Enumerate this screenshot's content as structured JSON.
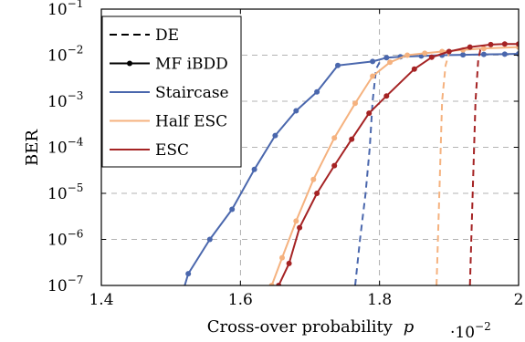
{
  "chart_data": {
    "type": "line",
    "xlabel": "Cross-over probability",
    "xlabel_var": "p",
    "ylabel": "BER",
    "x_multiplier": "·10",
    "x_multiplier_exp": "−2",
    "xlim": [
      1.4,
      2.0
    ],
    "ylim_log10": [
      -7,
      -1
    ],
    "x_ticks": [
      {
        "v": 1.4,
        "label": "1.4"
      },
      {
        "v": 1.6,
        "label": "1.6"
      },
      {
        "v": 1.8,
        "label": "1.8"
      },
      {
        "v": 2.0,
        "label": "2"
      }
    ],
    "y_ticks": [
      {
        "e": -1,
        "base": "10",
        "exp": "−1"
      },
      {
        "e": -2,
        "base": "10",
        "exp": "−2"
      },
      {
        "e": -3,
        "base": "10",
        "exp": "−3"
      },
      {
        "e": -4,
        "base": "10",
        "exp": "−4"
      },
      {
        "e": -5,
        "base": "10",
        "exp": "−5"
      },
      {
        "e": -6,
        "base": "10",
        "exp": "−6"
      },
      {
        "e": -7,
        "base": "10",
        "exp": "−7"
      }
    ],
    "grid": true,
    "legend_position": "top-left",
    "legend": [
      {
        "label": "DE",
        "style": "dashed",
        "color": "#000000"
      },
      {
        "label": "MF iBDD",
        "style": "solid-marker",
        "color": "#000000"
      },
      {
        "label": "Staircase",
        "style": "solid",
        "color": "#4a67ad"
      },
      {
        "label": "Half ESC",
        "style": "solid",
        "color": "#f5b27f"
      },
      {
        "label": "ESC",
        "style": "solid",
        "color": "#a52324"
      }
    ],
    "series": [
      {
        "key": "staircase_mf",
        "color": "#4a67ad",
        "style": "solid-marker",
        "x": [
          1.5,
          1.525,
          1.556,
          1.588,
          1.62,
          1.65,
          1.68,
          1.71,
          1.74,
          1.79,
          1.81,
          1.83,
          1.86,
          1.89,
          1.92,
          1.95,
          1.98,
          2.0
        ],
        "y": [
          1e-08,
          1.8e-07,
          1e-06,
          4.5e-06,
          3.3e-05,
          0.00018,
          0.00062,
          0.0016,
          0.006,
          0.0073,
          0.0088,
          0.0092,
          0.0096,
          0.01,
          0.0102,
          0.0104,
          0.0105,
          0.0107
        ]
      },
      {
        "key": "staircase_de",
        "color": "#4a67ad",
        "style": "dashed",
        "x": [
          1.765,
          1.772,
          1.78,
          1.786,
          1.79,
          1.795,
          1.8
        ],
        "y": [
          1e-07,
          1e-06,
          1e-05,
          0.0001,
          0.001,
          0.005,
          0.007
        ]
      },
      {
        "key": "half_esc_mf",
        "color": "#f5b27f",
        "style": "solid-marker",
        "x": [
          1.645,
          1.66,
          1.68,
          1.705,
          1.735,
          1.765,
          1.79,
          1.815,
          1.84,
          1.865,
          1.89,
          1.92,
          1.95,
          2.0
        ],
        "y": [
          1e-07,
          4e-07,
          2.5e-06,
          2e-05,
          0.00016,
          0.0009,
          0.0035,
          0.007,
          0.01,
          0.011,
          0.012,
          0.013,
          0.014,
          0.015
        ]
      },
      {
        "key": "half_esc_de",
        "color": "#f5b27f",
        "style": "dashed",
        "x": [
          1.882,
          1.886,
          1.89,
          1.895,
          1.9
        ],
        "y": [
          1e-07,
          1e-05,
          0.001,
          0.006,
          0.011
        ]
      },
      {
        "key": "esc_mf",
        "color": "#a52324",
        "style": "solid-marker",
        "x": [
          1.655,
          1.67,
          1.685,
          1.71,
          1.735,
          1.76,
          1.785,
          1.81,
          1.85,
          1.875,
          1.9,
          1.93,
          1.96,
          1.98,
          2.0
        ],
        "y": [
          1e-07,
          3e-07,
          1.8e-06,
          1e-05,
          4e-05,
          0.00015,
          0.00055,
          0.0013,
          0.005,
          0.009,
          0.012,
          0.015,
          0.017,
          0.0175,
          0.0175
        ]
      },
      {
        "key": "esc_de",
        "color": "#a52324",
        "style": "dashed",
        "x": [
          1.93,
          1.934,
          1.938,
          1.942,
          1.945,
          1.95
        ],
        "y": [
          1e-07,
          1e-05,
          0.001,
          0.008,
          0.013,
          0.016
        ]
      }
    ]
  }
}
